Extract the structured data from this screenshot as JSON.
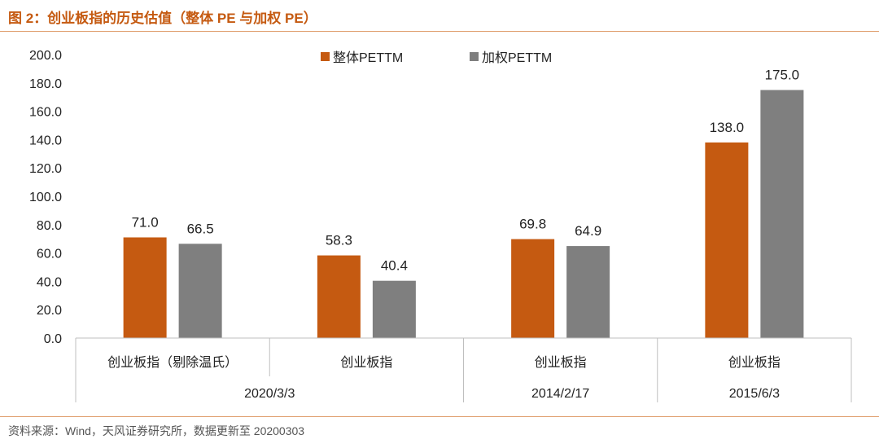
{
  "header": {
    "title": "图 2：创业板指的历史估值（整体 PE 与加权 PE）"
  },
  "footer": {
    "source": "资料来源：Wind，天风证券研究所，数据更新至 20200303"
  },
  "colors": {
    "accent": "#c55a11",
    "series1": "#c55a11",
    "series2": "#7f7f7f"
  },
  "chart_data": {
    "type": "bar",
    "title": "",
    "xlabel": "",
    "ylabel": "",
    "ylim": [
      0,
      200
    ],
    "yticks": [
      "0.0",
      "20.0",
      "40.0",
      "60.0",
      "80.0",
      "100.0",
      "120.0",
      "140.0",
      "160.0",
      "180.0",
      "200.0"
    ],
    "grid": false,
    "legend_position": "top-center",
    "categories": [
      "创业板指（剔除温氏）",
      "创业板指",
      "创业板指",
      "创业板指"
    ],
    "groups": [
      {
        "label": "2020/3/3",
        "categories": 2
      },
      {
        "label": "2014/2/17",
        "categories": 1
      },
      {
        "label": "2015/6/3",
        "categories": 1
      }
    ],
    "series": [
      {
        "name": "整体PETTM",
        "color": "#c55a11",
        "values": [
          71.0,
          58.3,
          69.8,
          138.0
        ],
        "labels": [
          "71.0",
          "58.3",
          "69.8",
          "138.0"
        ]
      },
      {
        "name": "加权PETTM",
        "color": "#7f7f7f",
        "values": [
          66.5,
          40.4,
          64.9,
          175.0
        ],
        "labels": [
          "66.5",
          "40.4",
          "64.9",
          "175.0"
        ]
      }
    ]
  }
}
